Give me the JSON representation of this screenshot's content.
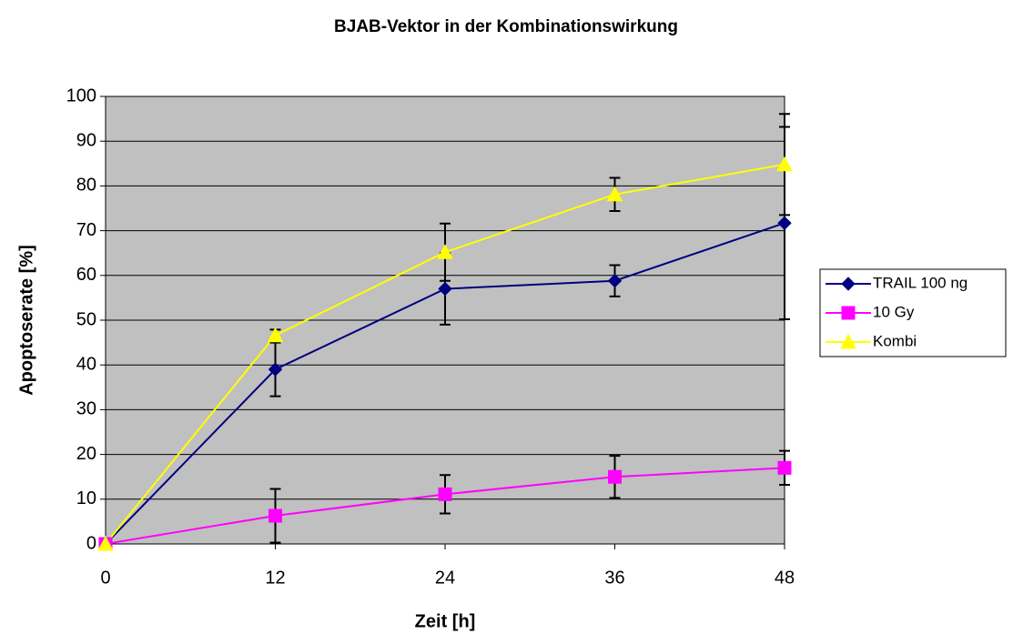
{
  "chart_data": {
    "type": "line",
    "title": "BJAB-Vektor in der Kombinationswirkung",
    "x_label": "Zeit [h]",
    "y_label": "Apoptoserate [%]",
    "x": [
      0,
      12,
      24,
      36,
      48
    ],
    "xlim": [
      0,
      48
    ],
    "xticks": [
      0,
      12,
      24,
      36,
      48
    ],
    "ylim": [
      0,
      100
    ],
    "yticks": [
      0,
      10,
      20,
      30,
      40,
      50,
      60,
      70,
      80,
      90,
      100
    ],
    "grid": true,
    "legend": "right",
    "series": [
      {
        "name": "TRAIL 100 ng",
        "color": "#000080",
        "marker": "diamond",
        "values": [
          0,
          39,
          57,
          58.8,
          71.7
        ],
        "errors": [
          null,
          6,
          8,
          3.5,
          21.5
        ]
      },
      {
        "name": "10 Gy",
        "color": "#ff00ff",
        "marker": "square",
        "values": [
          0,
          6.3,
          11.1,
          15,
          17
        ],
        "errors": [
          null,
          6,
          4.3,
          4.7,
          3.8
        ]
      },
      {
        "name": "Kombi",
        "color": "#ffff00",
        "marker": "triangle",
        "values": [
          0,
          46.6,
          65.2,
          78.1,
          84.8
        ],
        "errors": [
          null,
          1.3,
          6.4,
          3.7,
          11.3
        ]
      }
    ]
  }
}
